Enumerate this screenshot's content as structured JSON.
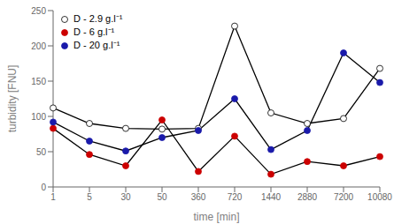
{
  "chart_data": {
    "type": "line",
    "xlabel": "time [min]",
    "ylabel": "turbidity [FNU]",
    "categories": [
      "1",
      "5",
      "30",
      "50",
      "360",
      "720",
      "1440",
      "2880",
      "7200",
      "10080"
    ],
    "series": [
      {
        "name": "D - 2.9 g.l⁻¹",
        "color": "#ffffff",
        "values": [
          112,
          90,
          83,
          82,
          83,
          228,
          105,
          90,
          97,
          168
        ]
      },
      {
        "name": "D - 6 g.l⁻¹",
        "color": "#cc0000",
        "values": [
          83,
          46,
          30,
          95,
          22,
          72,
          18,
          36,
          30,
          43
        ]
      },
      {
        "name": "D - 20 g.l⁻¹",
        "color": "#1a1aaa",
        "values": [
          92,
          65,
          51,
          70,
          80,
          125,
          53,
          80,
          190,
          148
        ]
      }
    ],
    "ylim": [
      0,
      250
    ],
    "yticks": [
      0,
      50,
      100,
      150,
      200,
      250
    ],
    "legend": "upper left"
  }
}
